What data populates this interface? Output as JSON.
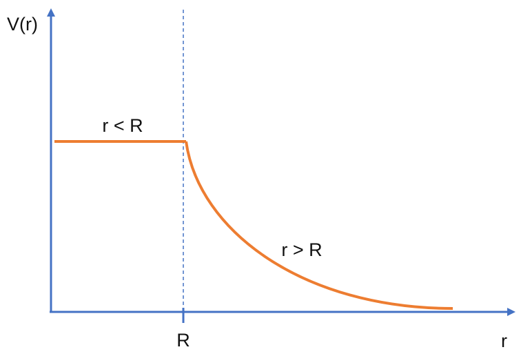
{
  "labels": {
    "y_axis": "V(r)",
    "x_axis": "r",
    "radius_tick": "R",
    "inside_region": "r < R",
    "outside_region": "r > R"
  },
  "colors": {
    "axes": "#4472C4",
    "curve": "#ED7D31",
    "text": "#111111"
  },
  "curve": {
    "inside": "constant",
    "outside": "decaying"
  }
}
